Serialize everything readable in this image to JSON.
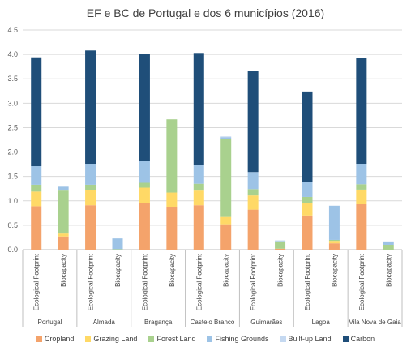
{
  "chart_data": {
    "type": "bar",
    "stacked": true,
    "title": "EF e BC de Portugal e dos 6 municípios (2016)",
    "ylim": [
      0,
      4.5
    ],
    "yticks": [
      "0.0",
      "0.5",
      "1.0",
      "1.5",
      "2.0",
      "2.5",
      "3.0",
      "3.5",
      "4.0",
      "4.5"
    ],
    "grid": true,
    "legend_position": "bottom",
    "groups": [
      "Portugal",
      "Almada",
      "Bragança",
      "Castelo Branco",
      "Guimarães",
      "Lagoa",
      "Vila Nova de Gaia"
    ],
    "subcategories": [
      "Ecological Footprint",
      "Biocapacity"
    ],
    "series": [
      {
        "name": "Cropland",
        "color": "#F4A36B",
        "values": [
          0.89,
          0.27,
          0.91,
          0.0,
          0.96,
          0.88,
          0.91,
          0.52,
          0.82,
          0.02,
          0.7,
          0.13,
          0.93,
          0.0
        ]
      },
      {
        "name": "Grazing Land",
        "color": "#FFD966",
        "values": [
          0.3,
          0.06,
          0.31,
          0.0,
          0.31,
          0.29,
          0.3,
          0.15,
          0.29,
          0.0,
          0.26,
          0.05,
          0.3,
          0.0
        ]
      },
      {
        "name": "Forest Land",
        "color": "#A9D18E",
        "values": [
          0.14,
          0.88,
          0.11,
          0.01,
          0.1,
          1.5,
          0.14,
          1.59,
          0.13,
          0.15,
          0.12,
          0.02,
          0.11,
          0.1
        ]
      },
      {
        "name": "Fishing Grounds",
        "color": "#9DC3E6",
        "values": [
          0.38,
          0.08,
          0.43,
          0.22,
          0.44,
          0.0,
          0.38,
          0.04,
          0.35,
          0.01,
          0.31,
          0.7,
          0.42,
          0.06
        ]
      },
      {
        "name": "Built-up Land",
        "color": "#C5D9F1",
        "values": [
          0.0,
          0.0,
          0.0,
          0.0,
          0.0,
          0.0,
          0.0,
          0.02,
          0.0,
          0.01,
          0.0,
          0.0,
          0.0,
          0.01
        ]
      },
      {
        "name": "Carbon",
        "color": "#1F4E79",
        "values": [
          2.23,
          0.0,
          2.32,
          0.0,
          2.2,
          0.0,
          2.3,
          0.0,
          2.07,
          0.0,
          1.85,
          0.0,
          2.17,
          0.0
        ]
      }
    ]
  }
}
